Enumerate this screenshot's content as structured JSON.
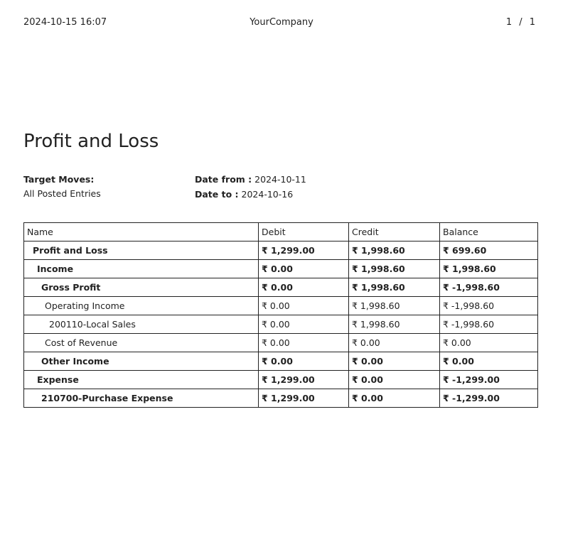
{
  "header": {
    "datetime": "2024-10-15 16:07",
    "company": "YourCompany",
    "page": "1 / 1"
  },
  "title": "Profit and Loss",
  "target_moves": {
    "label": "Target Moves:",
    "value": "All Posted Entries"
  },
  "date_from": {
    "label": "Date from :",
    "value": "2024-10-11"
  },
  "date_to": {
    "label": "Date to :",
    "value": "2024-10-16"
  },
  "table": {
    "columns": [
      "Name",
      "Debit",
      "Credit",
      "Balance"
    ],
    "rows": [
      {
        "name": "Profit and Loss",
        "level": 0,
        "bold": true,
        "debit": "₹ 1,299.00",
        "credit": "₹ 1,998.60",
        "balance": "₹ 699.60"
      },
      {
        "name": "Income",
        "level": 1,
        "bold": true,
        "debit": "₹ 0.00",
        "credit": "₹ 1,998.60",
        "balance": "₹ 1,998.60"
      },
      {
        "name": "Gross Profit",
        "level": 2,
        "bold": true,
        "debit": "₹ 0.00",
        "credit": "₹ 1,998.60",
        "balance": "₹ -1,998.60"
      },
      {
        "name": "Operating Income",
        "level": 3,
        "bold": false,
        "debit": "₹ 0.00",
        "credit": "₹ 1,998.60",
        "balance": "₹ -1,998.60"
      },
      {
        "name": "200110-Local Sales",
        "level": 4,
        "bold": false,
        "debit": "₹ 0.00",
        "credit": "₹ 1,998.60",
        "balance": "₹ -1,998.60"
      },
      {
        "name": "Cost of Revenue",
        "level": 3,
        "bold": false,
        "debit": "₹ 0.00",
        "credit": "₹ 0.00",
        "balance": "₹ 0.00"
      },
      {
        "name": "Other Income",
        "level": 2,
        "bold": true,
        "debit": "₹ 0.00",
        "credit": "₹ 0.00",
        "balance": "₹ 0.00"
      },
      {
        "name": "Expense",
        "level": 1,
        "bold": true,
        "debit": "₹ 1,299.00",
        "credit": "₹ 0.00",
        "balance": "₹ -1,299.00"
      },
      {
        "name": "210700-Purchase Expense",
        "level": 2,
        "bold": true,
        "debit": "₹ 1,299.00",
        "credit": "₹ 0.00",
        "balance": "₹ -1,299.00"
      }
    ]
  }
}
